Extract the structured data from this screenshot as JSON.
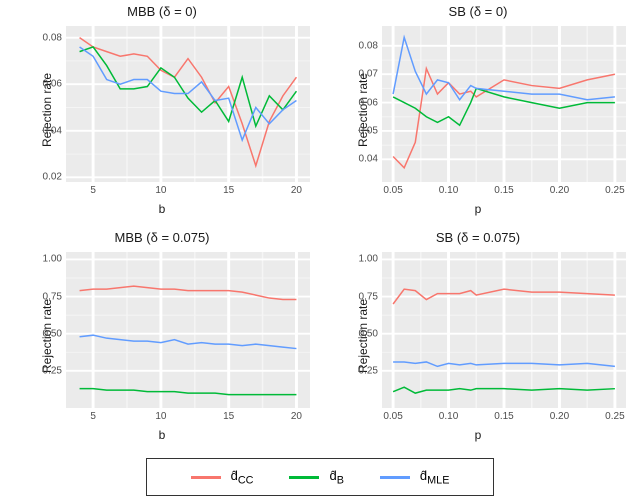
{
  "legend": {
    "items": [
      {
        "label_html": "d̂<sub>CC</sub>",
        "color": "#f8766d"
      },
      {
        "label_html": "d̂<sub>B</sub>",
        "color": "#00ba38"
      },
      {
        "label_html": "d̂<sub>MLE</sub>",
        "color": "#619cff"
      }
    ]
  },
  "panels": [
    {
      "id": "top-left",
      "title": "MBB (δ = 0)",
      "xlabel": "b",
      "ylabel": "Rejection rate",
      "xlim": [
        3,
        21
      ],
      "ylim": [
        0.018,
        0.085
      ],
      "xticks": [
        5,
        10,
        15,
        20
      ],
      "yticks": [
        0.02,
        0.04,
        0.06,
        0.08
      ],
      "ytick_labels": [
        "0.02",
        "0.04",
        "0.06",
        "0.08"
      ],
      "xtick_labels": [
        "5",
        "10",
        "15",
        "20"
      ],
      "x": [
        4,
        5,
        6,
        7,
        8,
        9,
        10,
        11,
        12,
        13,
        14,
        15,
        16,
        17,
        18,
        19,
        20
      ],
      "series": {
        "cc": [
          0.08,
          0.076,
          0.074,
          0.072,
          0.073,
          0.072,
          0.066,
          0.063,
          0.071,
          0.063,
          0.052,
          0.059,
          0.043,
          0.025,
          0.044,
          0.055,
          0.063
        ],
        "b": [
          0.074,
          0.076,
          0.068,
          0.058,
          0.058,
          0.059,
          0.067,
          0.063,
          0.054,
          0.048,
          0.053,
          0.044,
          0.063,
          0.042,
          0.055,
          0.049,
          0.057
        ],
        "mle": [
          0.076,
          0.072,
          0.062,
          0.06,
          0.062,
          0.062,
          0.057,
          0.056,
          0.056,
          0.061,
          0.053,
          0.054,
          0.036,
          0.05,
          0.043,
          0.049,
          0.053
        ]
      },
      "line_width": 1.5
    },
    {
      "id": "top-right",
      "title": "SB (δ = 0)",
      "xlabel": "p",
      "ylabel": "Rejection rate",
      "xlim": [
        0.04,
        0.26
      ],
      "ylim": [
        0.032,
        0.087
      ],
      "xticks": [
        0.05,
        0.1,
        0.15,
        0.2,
        0.25
      ],
      "yticks": [
        0.04,
        0.05,
        0.06,
        0.07,
        0.08
      ],
      "ytick_labels": [
        "0.04",
        "0.05",
        "0.06",
        "0.07",
        "0.08"
      ],
      "xtick_labels": [
        "0.05",
        "0.10",
        "0.15",
        "0.20",
        "0.25"
      ],
      "x": [
        0.05,
        0.06,
        0.07,
        0.08,
        0.09,
        0.1,
        0.11,
        0.12,
        0.125,
        0.15,
        0.175,
        0.2,
        0.225,
        0.25
      ],
      "series": {
        "cc": [
          0.041,
          0.037,
          0.046,
          0.072,
          0.063,
          0.067,
          0.063,
          0.064,
          0.062,
          0.068,
          0.066,
          0.065,
          0.068,
          0.07
        ],
        "b": [
          0.062,
          0.06,
          0.058,
          0.055,
          0.053,
          0.055,
          0.052,
          0.06,
          0.065,
          0.062,
          0.06,
          0.058,
          0.06,
          0.06
        ],
        "mle": [
          0.063,
          0.083,
          0.071,
          0.063,
          0.068,
          0.067,
          0.061,
          0.066,
          0.065,
          0.064,
          0.063,
          0.063,
          0.061,
          0.062
        ]
      },
      "line_width": 1.5
    },
    {
      "id": "bot-left",
      "title": "MBB (δ = 0.075)",
      "xlabel": "b",
      "ylabel": "Rejection rate",
      "xlim": [
        3,
        21
      ],
      "ylim": [
        0.0,
        1.05
      ],
      "xticks": [
        5,
        10,
        15,
        20
      ],
      "yticks": [
        0.25,
        0.5,
        0.75,
        1.0
      ],
      "ytick_labels": [
        "0.25",
        "0.50",
        "0.75",
        "1.00"
      ],
      "xtick_labels": [
        "5",
        "10",
        "15",
        "20"
      ],
      "x": [
        4,
        5,
        6,
        7,
        8,
        9,
        10,
        11,
        12,
        13,
        14,
        15,
        16,
        17,
        18,
        19,
        20
      ],
      "series": {
        "cc": [
          0.79,
          0.8,
          0.8,
          0.81,
          0.82,
          0.81,
          0.8,
          0.8,
          0.79,
          0.79,
          0.79,
          0.79,
          0.78,
          0.76,
          0.74,
          0.73,
          0.73
        ],
        "b": [
          0.13,
          0.13,
          0.12,
          0.12,
          0.12,
          0.11,
          0.11,
          0.11,
          0.1,
          0.1,
          0.1,
          0.09,
          0.09,
          0.09,
          0.09,
          0.09,
          0.09
        ],
        "mle": [
          0.48,
          0.49,
          0.47,
          0.46,
          0.45,
          0.45,
          0.44,
          0.46,
          0.43,
          0.44,
          0.43,
          0.43,
          0.42,
          0.43,
          0.42,
          0.41,
          0.4
        ]
      },
      "line_width": 1.5
    },
    {
      "id": "bot-right",
      "title": "SB (δ = 0.075)",
      "xlabel": "p",
      "ylabel": "Rejection rate",
      "xlim": [
        0.04,
        0.26
      ],
      "ylim": [
        0.0,
        1.05
      ],
      "xticks": [
        0.05,
        0.1,
        0.15,
        0.2,
        0.25
      ],
      "yticks": [
        0.25,
        0.5,
        0.75,
        1.0
      ],
      "ytick_labels": [
        "0.25",
        "0.50",
        "0.75",
        "1.00"
      ],
      "xtick_labels": [
        "0.05",
        "0.10",
        "0.15",
        "0.20",
        "0.25"
      ],
      "x": [
        0.05,
        0.06,
        0.07,
        0.08,
        0.09,
        0.1,
        0.11,
        0.12,
        0.125,
        0.15,
        0.175,
        0.2,
        0.225,
        0.25
      ],
      "series": {
        "cc": [
          0.7,
          0.8,
          0.79,
          0.73,
          0.77,
          0.77,
          0.77,
          0.79,
          0.76,
          0.8,
          0.78,
          0.78,
          0.77,
          0.76
        ],
        "b": [
          0.11,
          0.14,
          0.1,
          0.12,
          0.12,
          0.12,
          0.13,
          0.12,
          0.13,
          0.13,
          0.12,
          0.13,
          0.12,
          0.13
        ],
        "mle": [
          0.31,
          0.31,
          0.3,
          0.31,
          0.28,
          0.3,
          0.29,
          0.3,
          0.29,
          0.3,
          0.3,
          0.29,
          0.3,
          0.28
        ]
      },
      "line_width": 1.5
    }
  ],
  "colors": {
    "cc": "#f8766d",
    "b": "#00ba38",
    "mle": "#619cff",
    "panel_bg": "#ebebeb",
    "grid_major": "#ffffff",
    "grid_minor": "#f5f5f5"
  }
}
